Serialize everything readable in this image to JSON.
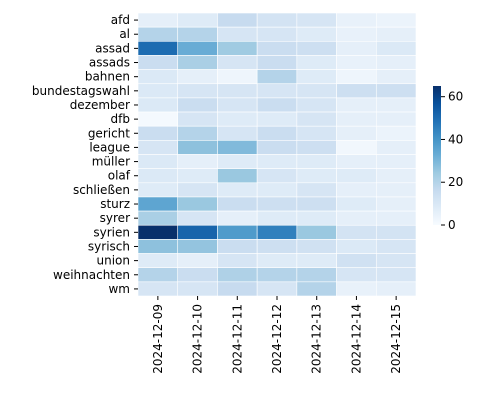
{
  "chart_data": {
    "type": "heatmap",
    "title": "",
    "xlabel": "",
    "ylabel": "",
    "x": [
      "2024-12-09",
      "2024-12-10",
      "2024-12-11",
      "2024-12-12",
      "2024-12-13",
      "2024-12-14",
      "2024-12-15"
    ],
    "y": [
      "afd",
      "al",
      "assad",
      "assads",
      "bahnen",
      "bundestagswahl",
      "dezember",
      "dfb",
      "gericht",
      "league",
      "müller",
      "olaf",
      "schließen",
      "sturz",
      "syrer",
      "syrien",
      "syrisch",
      "union",
      "weihnachten",
      "wm"
    ],
    "values": [
      [
        6,
        8,
        16,
        12,
        11,
        5,
        4
      ],
      [
        20,
        20,
        11,
        11,
        8,
        5,
        6
      ],
      [
        50,
        33,
        24,
        15,
        14,
        6,
        9
      ],
      [
        15,
        22,
        11,
        15,
        8,
        5,
        6
      ],
      [
        9,
        6,
        3,
        20,
        8,
        3,
        6
      ],
      [
        9,
        11,
        11,
        11,
        11,
        14,
        14
      ],
      [
        9,
        15,
        11,
        15,
        11,
        6,
        6
      ],
      [
        1,
        11,
        8,
        8,
        11,
        6,
        6
      ],
      [
        15,
        20,
        11,
        15,
        11,
        6,
        4
      ],
      [
        11,
        27,
        29,
        15,
        14,
        2,
        6
      ],
      [
        9,
        6,
        8,
        8,
        8,
        6,
        6
      ],
      [
        9,
        8,
        25,
        11,
        8,
        8,
        6
      ],
      [
        8,
        11,
        8,
        8,
        11,
        6,
        6
      ],
      [
        35,
        25,
        15,
        14,
        14,
        8,
        6
      ],
      [
        22,
        11,
        6,
        8,
        8,
        6,
        6
      ],
      [
        65,
        52,
        38,
        45,
        25,
        12,
        12
      ],
      [
        27,
        26,
        15,
        14,
        13,
        9,
        11
      ],
      [
        8,
        6,
        11,
        8,
        8,
        13,
        11
      ],
      [
        20,
        15,
        21,
        20,
        20,
        11,
        11
      ],
      [
        11,
        11,
        16,
        11,
        20,
        5,
        6
      ]
    ],
    "colorbar": {
      "min": 0,
      "max": 65,
      "ticks": [
        0,
        20,
        40,
        60
      ]
    },
    "colormap": [
      "#f7fbff",
      "#deebf7",
      "#c6dbef",
      "#9ecae1",
      "#6baed6",
      "#4292c6",
      "#2171b5",
      "#08519c",
      "#08306b"
    ],
    "grid": false,
    "legend": "colorbar-right"
  }
}
